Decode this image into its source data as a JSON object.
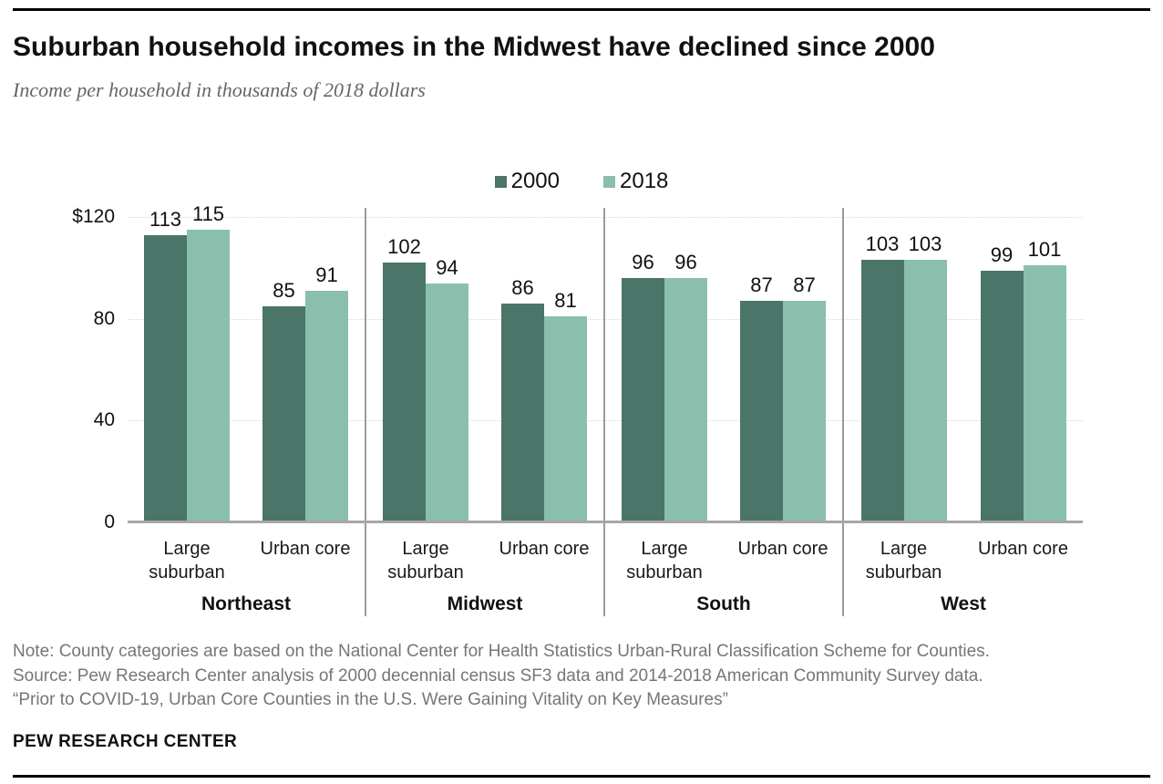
{
  "header": {
    "title": "Suburban household incomes in the Midwest have declined since 2000",
    "subtitle": "Income per household in thousands of 2018 dollars"
  },
  "legend": {
    "items": [
      {
        "label": "2000",
        "color": "#4a7568"
      },
      {
        "label": "2018",
        "color": "#8abfae"
      }
    ]
  },
  "chart_data": {
    "type": "bar",
    "title": "Suburban household incomes in the Midwest have declined since 2000",
    "subtitle": "Income per household in thousands of 2018 dollars",
    "unit": "thousands of 2018 dollars per household",
    "ylim": [
      0,
      120
    ],
    "grid": "dotted horizontal at 40, 80, 120",
    "legend_position": "top-center",
    "y_axis": {
      "ticks": [
        {
          "label": "$120",
          "value": 120
        },
        {
          "label": "80",
          "value": 80
        },
        {
          "label": "40",
          "value": 40
        },
        {
          "label": "0",
          "value": 0
        }
      ],
      "gridline_values": [
        120,
        80,
        40
      ],
      "baseline_value": 0
    },
    "series_names": [
      "2000",
      "2018"
    ],
    "series_colors": {
      "2000": "#4a7568",
      "2018": "#8abfae"
    },
    "groups": [
      {
        "region": "Northeast",
        "categories": [
          {
            "label": "Large suburban",
            "label_lines": [
              "Large",
              "suburban"
            ],
            "values": [
              113,
              115
            ]
          },
          {
            "label": "Urban core",
            "label_lines": [
              "Urban core"
            ],
            "values": [
              85,
              91
            ]
          }
        ]
      },
      {
        "region": "Midwest",
        "categories": [
          {
            "label": "Large suburban",
            "label_lines": [
              "Large",
              "suburban"
            ],
            "values": [
              102,
              94
            ]
          },
          {
            "label": "Urban core",
            "label_lines": [
              "Urban core"
            ],
            "values": [
              86,
              81
            ]
          }
        ]
      },
      {
        "region": "South",
        "categories": [
          {
            "label": "Large suburban",
            "label_lines": [
              "Large",
              "suburban"
            ],
            "values": [
              96,
              96
            ]
          },
          {
            "label": "Urban core",
            "label_lines": [
              "Urban core"
            ],
            "values": [
              87,
              87
            ]
          }
        ]
      },
      {
        "region": "West",
        "categories": [
          {
            "label": "Large suburban",
            "label_lines": [
              "Large",
              "suburban"
            ],
            "values": [
              103,
              103
            ]
          },
          {
            "label": "Urban core",
            "label_lines": [
              "Urban core"
            ],
            "values": [
              99,
              101
            ]
          }
        ]
      }
    ]
  },
  "footer": {
    "note": "Note: County categories are based on the National Center for Health Statistics Urban-Rural Classification Scheme for Counties.",
    "source": "Source: Pew Research Center analysis of 2000 decennial census SF3 data and 2014-2018 American Community Survey data.",
    "quote": "“Prior to COVID-19, Urban Core Counties in the U.S. Were Gaining Vitality on Key Measures”",
    "brand": "PEW RESEARCH CENTER"
  }
}
